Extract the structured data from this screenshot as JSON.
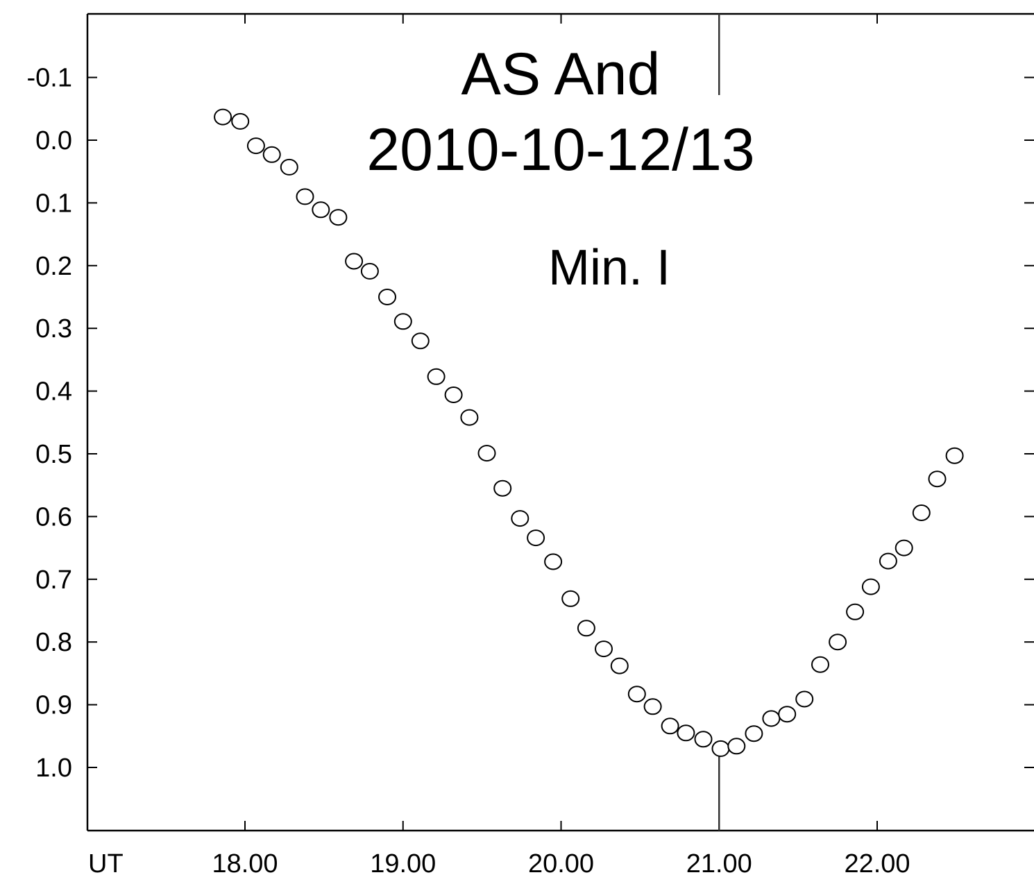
{
  "chart_data": {
    "type": "scatter",
    "title": "AS And",
    "subtitle": "2010-10-12/13",
    "annotation": "Min. I",
    "xlabel": "UT",
    "ylabel": "",
    "x_tick_labels": [
      "18.00",
      "19.00",
      "20.00",
      "21.00",
      "22.00"
    ],
    "x_ticks": [
      18,
      19,
      20,
      21,
      22
    ],
    "y_tick_labels": [
      "-0.1",
      "0.0",
      "0.1",
      "0.2",
      "0.3",
      "0.4",
      "0.5",
      "0.6",
      "0.7",
      "0.8",
      "0.9",
      "1.0"
    ],
    "y_ticks": [
      -0.1,
      0.0,
      0.1,
      0.2,
      0.3,
      0.4,
      0.5,
      0.6,
      0.7,
      0.8,
      0.9,
      1.0
    ],
    "xlim": [
      17.0,
      23.0
    ],
    "ylim": [
      -0.2,
      1.1
    ],
    "y_inverted": true,
    "minimum_marker_x": 21.0,
    "marker": "open-circle",
    "grid": false,
    "series": [
      {
        "x": [
          17.86,
          17.97,
          18.07,
          18.17,
          18.28,
          18.38,
          18.48,
          18.59,
          18.69,
          18.79,
          18.9,
          19.0,
          19.11,
          19.21,
          19.32,
          19.42,
          19.53,
          19.63,
          19.74,
          19.84,
          19.95,
          20.06,
          20.16,
          20.27,
          20.37,
          20.48,
          20.58,
          20.69,
          20.79,
          20.9,
          21.01,
          21.11,
          21.22,
          21.33,
          21.43,
          21.54,
          21.64,
          21.75,
          21.86,
          21.96,
          22.07,
          22.17,
          22.28,
          22.38,
          22.49
        ],
        "y": [
          -0.037,
          -0.03,
          0.009,
          0.023,
          0.043,
          0.09,
          0.111,
          0.123,
          0.193,
          0.209,
          0.25,
          0.289,
          0.32,
          0.377,
          0.406,
          0.442,
          0.499,
          0.555,
          0.603,
          0.634,
          0.672,
          0.731,
          0.778,
          0.811,
          0.838,
          0.883,
          0.903,
          0.934,
          0.945,
          0.955,
          0.97,
          0.966,
          0.946,
          0.922,
          0.915,
          0.891,
          0.836,
          0.8,
          0.752,
          0.712,
          0.671,
          0.65,
          0.594,
          0.54,
          0.503
        ]
      }
    ]
  }
}
